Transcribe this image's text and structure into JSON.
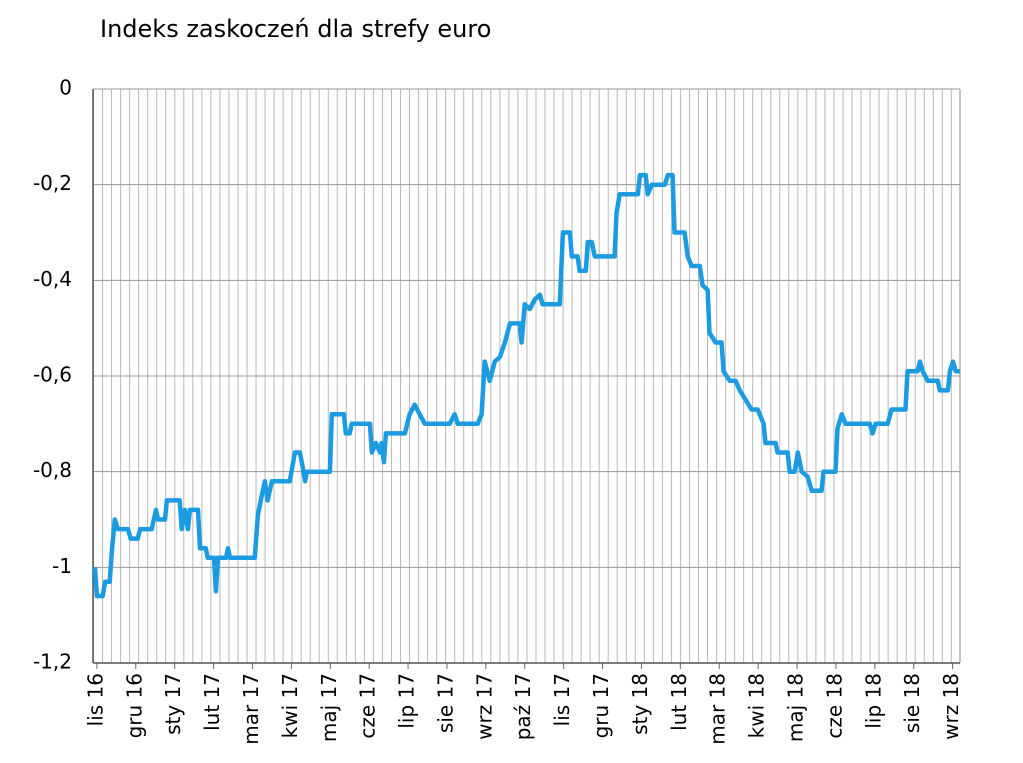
{
  "chart_data": {
    "type": "line",
    "title": "Indeks zaskoczeń dla strefy euro",
    "color": "#1a9be2",
    "grid": true,
    "xlim": [
      -0.1,
      22.19
    ],
    "ylim": [
      -1.2,
      0
    ],
    "yticks": [
      {
        "value": -1.2,
        "label": "-1,2"
      },
      -1,
      {
        "value": -0.8,
        "label": "-0,8"
      },
      {
        "value": -0.6,
        "label": "-0,6"
      },
      {
        "value": -0.4,
        "label": "-0,4"
      },
      {
        "value": -0.2,
        "label": "-0,2"
      },
      0
    ],
    "xticks": [
      {
        "value": 0,
        "label": "lis 16"
      },
      {
        "value": 1,
        "label": "gru 16"
      },
      {
        "value": 2,
        "label": "sty 17"
      },
      {
        "value": 3,
        "label": "lut 17"
      },
      {
        "value": 4,
        "label": "mar 17"
      },
      {
        "value": 5,
        "label": "kwi 17"
      },
      {
        "value": 6,
        "label": "maj 17"
      },
      {
        "value": 7,
        "label": "cze 17"
      },
      {
        "value": 8,
        "label": "lip 17"
      },
      {
        "value": 9,
        "label": "sie 17"
      },
      {
        "value": 10,
        "label": "wrz 17"
      },
      {
        "value": 11,
        "label": "paź 17"
      },
      {
        "value": 12,
        "label": "lis 17"
      },
      {
        "value": 13,
        "label": "gru 17"
      },
      {
        "value": 14,
        "label": "sty 18"
      },
      {
        "value": 15,
        "label": "lut 18"
      },
      {
        "value": 16,
        "label": "mar 18"
      },
      {
        "value": 17,
        "label": "kwi 18"
      },
      {
        "value": 18,
        "label": "maj 18"
      },
      {
        "value": 19,
        "label": "cze 18"
      },
      {
        "value": 20,
        "label": "lip 18"
      },
      {
        "value": 21,
        "label": "sie 18"
      },
      {
        "value": 22,
        "label": "wrz 18"
      }
    ],
    "x": [
      -0.05,
      0,
      0.15,
      0.21,
      0.33,
      0.39,
      0.46,
      0.54,
      0.8,
      0.87,
      1.05,
      1.11,
      1.41,
      1.52,
      1.57,
      1.75,
      1.8,
      2.13,
      2.18,
      2.26,
      2.34,
      2.39,
      2.6,
      2.65,
      2.8,
      2.85,
      3.01,
      3.06,
      3.11,
      3.32,
      3.37,
      3.42,
      4.06,
      4.14,
      4.24,
      4.32,
      4.39,
      4.5,
      4.96,
      5.09,
      5.22,
      5.29,
      5.35,
      5.4,
      5.99,
      6.04,
      6.35,
      6.4,
      6.5,
      6.55,
      7.02,
      7.07,
      7.17,
      7.28,
      7.32,
      7.38,
      7.43,
      7.92,
      8.04,
      8.17,
      8.3,
      8.43,
      9.07,
      9.2,
      9.28,
      9.79,
      9.89,
      9.97,
      10.1,
      10.23,
      10.36,
      10.49,
      10.62,
      10.87,
      10.92,
      11.0,
      11.13,
      11.26,
      11.39,
      11.46,
      11.9,
      11.98,
      12.16,
      12.21,
      12.36,
      12.41,
      12.57,
      12.62,
      12.72,
      12.8,
      13.31,
      13.36,
      13.44,
      13.91,
      13.96,
      14.11,
      14.16,
      14.27,
      14.6,
      14.68,
      14.8,
      14.85,
      15.11,
      15.19,
      15.29,
      15.5,
      15.57,
      15.7,
      15.75,
      15.91,
      16.06,
      16.11,
      16.27,
      16.42,
      16.53,
      16.68,
      16.83,
      16.99,
      17.14,
      17.19,
      17.45,
      17.5,
      17.76,
      17.81,
      17.94,
      18.02,
      18.12,
      18.27,
      18.38,
      18.63,
      18.68,
      18.99,
      19.04,
      19.15,
      19.25,
      19.87,
      19.94,
      20.02,
      20.33,
      20.43,
      20.79,
      20.84,
      21.1,
      21.16,
      21.23,
      21.36,
      21.62,
      21.67,
      21.88,
      21.93,
      22.01,
      22.08,
      22.18
    ],
    "values": [
      -1.0,
      -1.06,
      -1.06,
      -1.03,
      -1.03,
      -0.96,
      -0.9,
      -0.92,
      -0.92,
      -0.94,
      -0.94,
      -0.92,
      -0.92,
      -0.88,
      -0.9,
      -0.9,
      -0.86,
      -0.86,
      -0.92,
      -0.88,
      -0.92,
      -0.88,
      -0.88,
      -0.96,
      -0.96,
      -0.98,
      -0.98,
      -1.05,
      -0.98,
      -0.98,
      -0.96,
      -0.98,
      -0.98,
      -0.89,
      -0.85,
      -0.82,
      -0.86,
      -0.82,
      -0.82,
      -0.76,
      -0.76,
      -0.79,
      -0.82,
      -0.8,
      -0.8,
      -0.68,
      -0.68,
      -0.72,
      -0.72,
      -0.7,
      -0.7,
      -0.76,
      -0.74,
      -0.76,
      -0.74,
      -0.78,
      -0.72,
      -0.72,
      -0.68,
      -0.66,
      -0.68,
      -0.7,
      -0.7,
      -0.68,
      -0.7,
      -0.7,
      -0.68,
      -0.57,
      -0.61,
      -0.57,
      -0.56,
      -0.53,
      -0.49,
      -0.49,
      -0.53,
      -0.45,
      -0.46,
      -0.44,
      -0.43,
      -0.45,
      -0.45,
      -0.3,
      -0.3,
      -0.35,
      -0.35,
      -0.38,
      -0.38,
      -0.32,
      -0.32,
      -0.35,
      -0.35,
      -0.26,
      -0.22,
      -0.22,
      -0.18,
      -0.18,
      -0.22,
      -0.2,
      -0.2,
      -0.18,
      -0.18,
      -0.3,
      -0.3,
      -0.35,
      -0.37,
      -0.37,
      -0.41,
      -0.42,
      -0.51,
      -0.53,
      -0.53,
      -0.59,
      -0.61,
      -0.61,
      -0.63,
      -0.65,
      -0.67,
      -0.67,
      -0.7,
      -0.74,
      -0.74,
      -0.76,
      -0.76,
      -0.8,
      -0.8,
      -0.76,
      -0.8,
      -0.81,
      -0.84,
      -0.84,
      -0.8,
      -0.8,
      -0.71,
      -0.68,
      -0.7,
      -0.7,
      -0.72,
      -0.7,
      -0.7,
      -0.67,
      -0.67,
      -0.59,
      -0.59,
      -0.57,
      -0.59,
      -0.61,
      -0.61,
      -0.63,
      -0.63,
      -0.59,
      -0.57,
      -0.59,
      -0.59
    ]
  }
}
